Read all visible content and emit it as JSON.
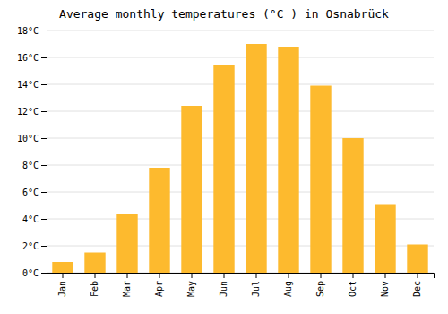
{
  "chart_data": {
    "type": "bar",
    "title": "Average monthly temperatures (°C ) in Osnabrück",
    "categories": [
      "Jan",
      "Feb",
      "Mar",
      "Apr",
      "May",
      "Jun",
      "Jul",
      "Aug",
      "Sep",
      "Oct",
      "Nov",
      "Dec"
    ],
    "values": [
      0.8,
      1.5,
      4.4,
      7.8,
      12.4,
      15.4,
      17.0,
      16.8,
      13.9,
      10.0,
      5.1,
      2.1
    ],
    "color": "#FDBA2E",
    "ylim": [
      0,
      18
    ],
    "yticks": [
      {
        "value": 0,
        "label": "0°C"
      },
      {
        "value": 2,
        "label": "2°C"
      },
      {
        "value": 4,
        "label": "4°C"
      },
      {
        "value": 6,
        "label": "6°C"
      },
      {
        "value": 8,
        "label": "8°C"
      },
      {
        "value": 10,
        "label": "10°C"
      },
      {
        "value": 12,
        "label": "12°C"
      },
      {
        "value": 14,
        "label": "14°C"
      },
      {
        "value": 16,
        "label": "16°C"
      },
      {
        "value": 18,
        "label": "18°C"
      }
    ],
    "grid": true
  }
}
